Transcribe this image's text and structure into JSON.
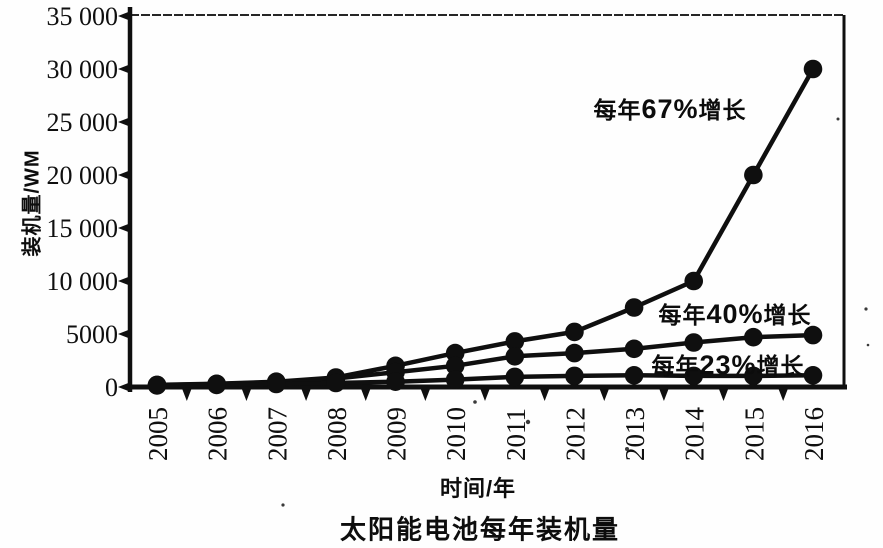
{
  "figure": {
    "title": "太阳能电池每年装机量",
    "x_axis_title": "时间/年",
    "y_axis_title": "装机量/WM"
  },
  "chart_data": {
    "type": "line",
    "title": "太阳能电池每年装机量",
    "xlabel": "时间/年",
    "ylabel": "装机量/WM",
    "x": [
      2005,
      2006,
      2007,
      2008,
      2009,
      2010,
      2011,
      2012,
      2013,
      2014,
      2015,
      2016
    ],
    "x_tick_labels": [
      "2005",
      "2006",
      "2007",
      "2008",
      "2009",
      "2010",
      "2011",
      "2012",
      "2013",
      "2014",
      "2015",
      "2016"
    ],
    "ylim": [
      0,
      35000
    ],
    "y_ticks": [
      0,
      5000,
      10000,
      15000,
      20000,
      25000,
      30000,
      35000
    ],
    "y_tick_labels": [
      "0",
      "5000",
      "10 000",
      "15 000",
      "20 000",
      "25 000",
      "30 000",
      "35 000"
    ],
    "grid": false,
    "legend_position": "inline-annotations",
    "marker": "filled-circle",
    "series": [
      {
        "name": "每年67%增长",
        "rate": "67%",
        "values": [
          200,
          300,
          500,
          900,
          2000,
          3200,
          4300,
          5200,
          7500,
          10000,
          20000,
          30000
        ]
      },
      {
        "name": "每年40%增长",
        "rate": "40%",
        "values": [
          180,
          280,
          450,
          800,
          1400,
          2000,
          2900,
          3200,
          3600,
          4200,
          4700,
          4900
        ]
      },
      {
        "name": "每年23%增长",
        "rate": "23%",
        "values": [
          150,
          200,
          280,
          380,
          500,
          700,
          950,
          1050,
          1100,
          1050,
          1050,
          1100
        ]
      }
    ],
    "annotations": [
      {
        "prefix": "每年",
        "rate": "67%",
        "suffix": "增长"
      },
      {
        "prefix": "每年",
        "rate": "40%",
        "suffix": "增长"
      },
      {
        "prefix": "每年",
        "rate": "23%",
        "suffix": "增长"
      }
    ],
    "colors": {
      "ink": "#0f0f0f",
      "background": "#fefefe"
    }
  }
}
